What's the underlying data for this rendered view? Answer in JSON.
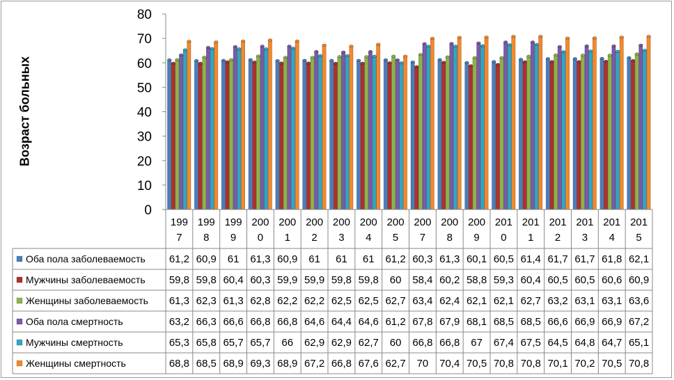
{
  "chart_data": {
    "type": "bar",
    "title": "",
    "xlabel": "",
    "ylabel": "Возраст больных",
    "ylim": [
      0,
      80
    ],
    "yticks": [
      0,
      10,
      20,
      30,
      40,
      50,
      60,
      70,
      80
    ],
    "grid": false,
    "legend": "table-left",
    "categories": [
      {
        "line1": "199",
        "line2": "7"
      },
      {
        "line1": "199",
        "line2": "8"
      },
      {
        "line1": "199",
        "line2": "9"
      },
      {
        "line1": "200",
        "line2": "0"
      },
      {
        "line1": "200",
        "line2": "1"
      },
      {
        "line1": "200",
        "line2": "2"
      },
      {
        "line1": "200",
        "line2": "3"
      },
      {
        "line1": "200",
        "line2": "4"
      },
      {
        "line1": "200",
        "line2": "5"
      },
      {
        "line1": "200",
        "line2": "7"
      },
      {
        "line1": "200",
        "line2": "8"
      },
      {
        "line1": "200",
        "line2": "9"
      },
      {
        "line1": "201",
        "line2": "0"
      },
      {
        "line1": "201",
        "line2": "1"
      },
      {
        "line1": "201",
        "line2": "2"
      },
      {
        "line1": "201",
        "line2": "3"
      },
      {
        "line1": "201",
        "line2": "4"
      },
      {
        "line1": "201",
        "line2": "5"
      }
    ],
    "series": [
      {
        "name": "Оба пола заболеваемость",
        "color": "#4a7ebb",
        "values": [
          61.2,
          60.9,
          61,
          61.3,
          60.9,
          61,
          61,
          61,
          61.2,
          60.3,
          61.3,
          60.1,
          60.5,
          61.4,
          61.7,
          61.7,
          61.8,
          62.1
        ],
        "labels": [
          "61,2",
          "60,9",
          "61",
          "61,3",
          "60,9",
          "61",
          "61",
          "61",
          "61,2",
          "60,3",
          "61,3",
          "60,1",
          "60,5",
          "61,4",
          "61,7",
          "61,7",
          "61,8",
          "62,1"
        ]
      },
      {
        "name": "Мужчины заболеваемость",
        "color": "#b0302c",
        "values": [
          59.8,
          59.8,
          60.4,
          60.3,
          59.9,
          59.9,
          59.8,
          59.8,
          60,
          58.4,
          60.2,
          58.8,
          59.3,
          60.4,
          60.5,
          60.5,
          60.6,
          60.9
        ],
        "labels": [
          "59,8",
          "59,8",
          "60,4",
          "60,3",
          "59,9",
          "59,9",
          "59,8",
          "59,8",
          "60",
          "58,4",
          "60,2",
          "58,8",
          "59,3",
          "60,4",
          "60,5",
          "60,5",
          "60,6",
          "60,9"
        ]
      },
      {
        "name": "Женщины заболеваемость",
        "color": "#8db34a",
        "values": [
          61.3,
          62.3,
          61.3,
          62.8,
          62.2,
          62.2,
          62.5,
          62.5,
          62.7,
          63.4,
          62.4,
          62.1,
          62.1,
          62.7,
          63.2,
          63.1,
          63.1,
          63.6
        ],
        "labels": [
          "61,3",
          "62,3",
          "61,3",
          "62,8",
          "62,2",
          "62,2",
          "62,5",
          "62,5",
          "62,7",
          "63,4",
          "62,4",
          "62,1",
          "62,1",
          "62,7",
          "63,2",
          "63,1",
          "63,1",
          "63,6"
        ]
      },
      {
        "name": "Оба пола смертность",
        "color": "#7a5aa8",
        "values": [
          63.2,
          66.3,
          66.6,
          66.8,
          66.8,
          64.6,
          64.4,
          64.6,
          61.2,
          67.8,
          67.9,
          68.1,
          68.5,
          68.5,
          66.6,
          66.9,
          66.9,
          67.2
        ],
        "labels": [
          "63,2",
          "66,3",
          "66,6",
          "66,8",
          "66,8",
          "64,6",
          "64,4",
          "64,6",
          "61,2",
          "67,8",
          "67,9",
          "68,1",
          "68,5",
          "68,5",
          "66,6",
          "66,9",
          "66,9",
          "67,2"
        ]
      },
      {
        "name": "Мужчины смертность",
        "color": "#31a6c5",
        "values": [
          65.3,
          65.8,
          65.7,
          65.7,
          66,
          62.9,
          62.9,
          62.7,
          60,
          66.8,
          66.8,
          67,
          67.4,
          67.5,
          64.5,
          64.8,
          64.7,
          65.1
        ],
        "labels": [
          "65,3",
          "65,8",
          "65,7",
          "65,7",
          "66",
          "62,9",
          "62,9",
          "62,7",
          "60",
          "66,8",
          "66,8",
          "67",
          "67,4",
          "67,5",
          "64,5",
          "64,8",
          "64,7",
          "65,1"
        ]
      },
      {
        "name": "Женщины смертность",
        "color": "#f5882a",
        "values": [
          68.8,
          68.5,
          68.9,
          69.3,
          68.9,
          67.2,
          66.8,
          67.6,
          62.7,
          70,
          70.4,
          70.5,
          70.8,
          70.8,
          70.1,
          70.2,
          70.5,
          70.8
        ],
        "labels": [
          "68,8",
          "68,5",
          "68,9",
          "69,3",
          "68,9",
          "67,2",
          "66,8",
          "67,6",
          "62,7",
          "70",
          "70,4",
          "70,5",
          "70,8",
          "70,8",
          "70,1",
          "70,2",
          "70,5",
          "70,8"
        ]
      }
    ]
  }
}
